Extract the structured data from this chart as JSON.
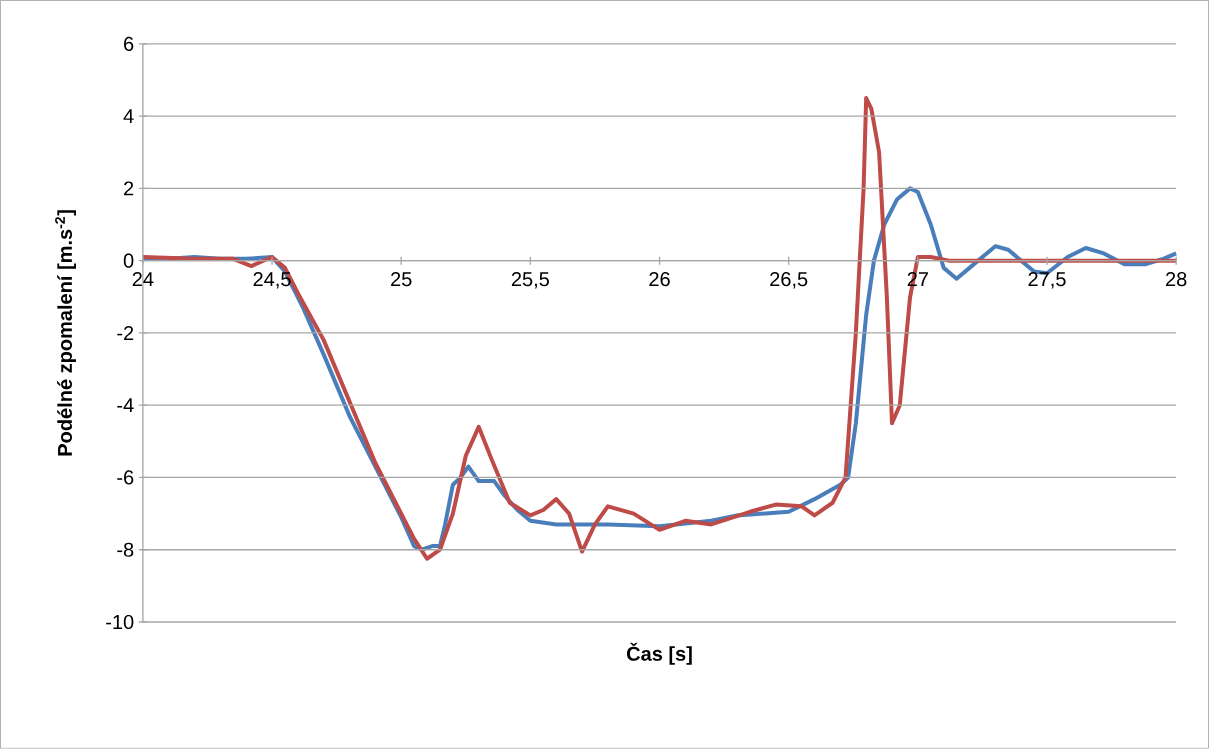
{
  "chart_data": {
    "type": "line",
    "xlabel": "Čas [s]",
    "ylabel": "Podélné zpomalení [m.s$^{-2}$]",
    "xlim": [
      24,
      28
    ],
    "ylim": [
      -10,
      6
    ],
    "xticks": [
      24,
      {
        "value": 24.5,
        "label": "24,5"
      },
      25,
      {
        "value": 25.5,
        "label": "25,5"
      },
      26,
      {
        "value": 26.5,
        "label": "26,5"
      },
      27,
      {
        "value": 27.5,
        "label": "27,5"
      },
      28
    ],
    "yticks": [
      -10,
      -8,
      -6,
      -4,
      -2,
      0,
      2,
      4,
      6
    ],
    "grid": "y",
    "marker": "none",
    "line_style": "solid",
    "series": [
      {
        "color": "#4a7ebb",
        "x": [
          24,
          24.1,
          24.2,
          24.3,
          24.4,
          24.5,
          24.55,
          24.62,
          24.7,
          24.8,
          24.9,
          25.0,
          25.05,
          25.08,
          25.12,
          25.15,
          25.17,
          25.2,
          25.23,
          25.26,
          25.3,
          25.36,
          25.4,
          25.45,
          25.5,
          25.6,
          25.8,
          26.0,
          26.2,
          26.3,
          26.5,
          26.6,
          26.7,
          26.73,
          26.76,
          26.8,
          26.83,
          26.87,
          26.92,
          26.97,
          27.0,
          27.05,
          27.1,
          27.15,
          27.2,
          27.3,
          27.35,
          27.45,
          27.5,
          27.58,
          27.65,
          27.72,
          27.8,
          27.88,
          27.95,
          28
        ],
        "values": [
          0.05,
          0.05,
          0.1,
          0.05,
          0.05,
          0.1,
          -0.3,
          -1.3,
          -2.6,
          -4.3,
          -5.7,
          -7.1,
          -7.9,
          -8.0,
          -7.9,
          -7.9,
          -7.3,
          -6.2,
          -6.0,
          -5.7,
          -6.1,
          -6.1,
          -6.5,
          -6.9,
          -7.2,
          -7.3,
          -7.3,
          -7.35,
          -7.2,
          -7.05,
          -6.95,
          -6.6,
          -6.2,
          -6.0,
          -4.5,
          -1.5,
          0,
          1.0,
          1.7,
          2.0,
          1.9,
          1.0,
          -0.2,
          -0.5,
          -0.2,
          0.4,
          0.3,
          -0.3,
          -0.35,
          0.1,
          0.35,
          0.2,
          -0.1,
          -0.1,
          0.05,
          0.2
        ]
      },
      {
        "color": "#be4b48",
        "x": [
          24,
          24.2,
          24.35,
          24.42,
          24.5,
          24.55,
          24.6,
          24.7,
          24.8,
          24.9,
          25.0,
          25.05,
          25.1,
          25.15,
          25.2,
          25.25,
          25.3,
          25.35,
          25.42,
          25.5,
          25.55,
          25.6,
          25.65,
          25.7,
          25.75,
          25.8,
          25.9,
          26.0,
          26.1,
          26.2,
          26.35,
          26.45,
          26.55,
          26.6,
          26.67,
          26.72,
          26.76,
          26.79,
          26.8,
          26.82,
          26.85,
          26.88,
          26.9,
          26.93,
          26.97,
          27.0,
          27.05,
          27.12,
          28
        ],
        "values": [
          0.1,
          0.05,
          0.05,
          -0.15,
          0.1,
          -0.2,
          -0.9,
          -2.2,
          -3.9,
          -5.6,
          -7.0,
          -7.7,
          -8.25,
          -8.0,
          -7.0,
          -5.4,
          -4.6,
          -5.5,
          -6.7,
          -7.05,
          -6.9,
          -6.6,
          -7.0,
          -8.05,
          -7.3,
          -6.8,
          -7.0,
          -7.45,
          -7.2,
          -7.3,
          -6.95,
          -6.75,
          -6.8,
          -7.05,
          -6.7,
          -6.0,
          -2,
          2,
          4.5,
          4.2,
          3,
          -1,
          -4.5,
          -4.0,
          -1,
          0.1,
          0.1,
          0,
          0
        ]
      }
    ]
  }
}
